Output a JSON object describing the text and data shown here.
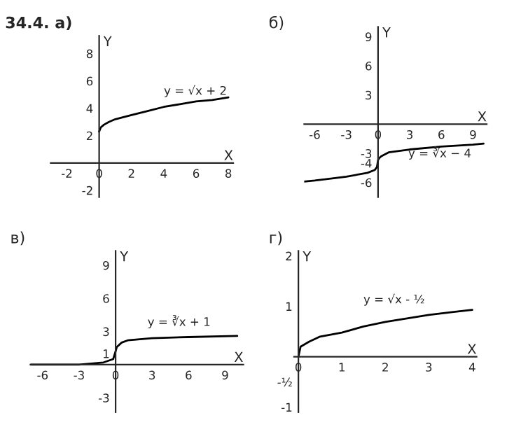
{
  "chart_data": [
    {
      "type": "line",
      "title": "34.4. а)",
      "xlabel": "X",
      "ylabel": "Y",
      "xlim": [
        -3,
        8.3
      ],
      "ylim": [
        -2.5,
        9.3
      ],
      "xticks": [
        -2,
        0,
        2,
        4,
        6,
        8
      ],
      "yticks": [
        -2,
        2,
        4,
        6,
        8
      ],
      "grid": false,
      "legend": false,
      "annotations": [
        "y = √x + 2"
      ],
      "series": [
        {
          "color": "#000000",
          "x": [
            0,
            0.1,
            0.3,
            0.6,
            1,
            2,
            3,
            4,
            5,
            6,
            7,
            8
          ],
          "values": [
            2.3,
            2.6,
            2.8,
            3.0,
            3.2,
            3.5,
            3.8,
            4.1,
            4.3,
            4.5,
            4.6,
            4.8
          ]
        }
      ]
    },
    {
      "type": "line",
      "title": "б)",
      "xlabel": "X",
      "ylabel": "Y",
      "xlim": [
        -7,
        10.3
      ],
      "ylim": [
        -7.5,
        10
      ],
      "xticks": [
        -6,
        -3,
        0,
        3,
        6,
        9
      ],
      "yticks": [
        -6,
        -4,
        -3,
        3,
        6,
        9
      ],
      "grid": false,
      "legend": false,
      "annotations": [
        "y = ∛x − 4"
      ],
      "series": [
        {
          "color": "#000000",
          "x": [
            -7,
            -6,
            -3,
            -1,
            -0.3,
            -0.1,
            0,
            0.1,
            0.3,
            1,
            3,
            6,
            9,
            10
          ],
          "values": [
            -5.9,
            -5.8,
            -5.4,
            -5.0,
            -4.7,
            -4.4,
            -3.7,
            -3.5,
            -3.3,
            -2.9,
            -2.6,
            -2.3,
            -2.1,
            -2.0
          ]
        }
      ]
    },
    {
      "type": "line",
      "title": "в)",
      "xlabel": "X",
      "ylabel": "Y",
      "xlim": [
        -7,
        10.5
      ],
      "ylim": [
        -4.3,
        10.3
      ],
      "xticks": [
        -6,
        -3,
        0,
        3,
        6,
        9
      ],
      "yticks": [
        -3,
        1,
        3,
        6,
        9
      ],
      "grid": false,
      "legend": false,
      "annotations": [
        "y = ∛x + 1"
      ],
      "series": [
        {
          "color": "#000000",
          "x": [
            -7,
            -3,
            -1,
            -0.2,
            0,
            0.1,
            0.5,
            1,
            3,
            6,
            10
          ],
          "values": [
            0,
            0,
            0.2,
            0.5,
            1.2,
            1.6,
            2.0,
            2.2,
            2.4,
            2.5,
            2.6
          ]
        }
      ]
    },
    {
      "type": "line",
      "title": "г)",
      "xlabel": "X",
      "ylabel": "Y",
      "xlim": [
        -0.1,
        4.1
      ],
      "ylim": [
        -1.1,
        2.1
      ],
      "xticks": [
        0,
        1,
        2,
        3,
        4
      ],
      "yticks": [
        {
          "value": -1,
          "label": "-1"
        },
        {
          "value": -0.5,
          "label": "-½"
        },
        1,
        2
      ],
      "grid": false,
      "legend": false,
      "annotations": [
        "y = √x - ½"
      ],
      "series": [
        {
          "color": "#000000",
          "x": [
            0,
            0.05,
            0.25,
            0.5,
            1,
            1.5,
            2,
            2.5,
            3,
            3.5,
            4
          ],
          "values": [
            0,
            0.2,
            0.3,
            0.4,
            0.48,
            0.6,
            0.69,
            0.76,
            0.83,
            0.88,
            0.93
          ]
        }
      ]
    }
  ]
}
